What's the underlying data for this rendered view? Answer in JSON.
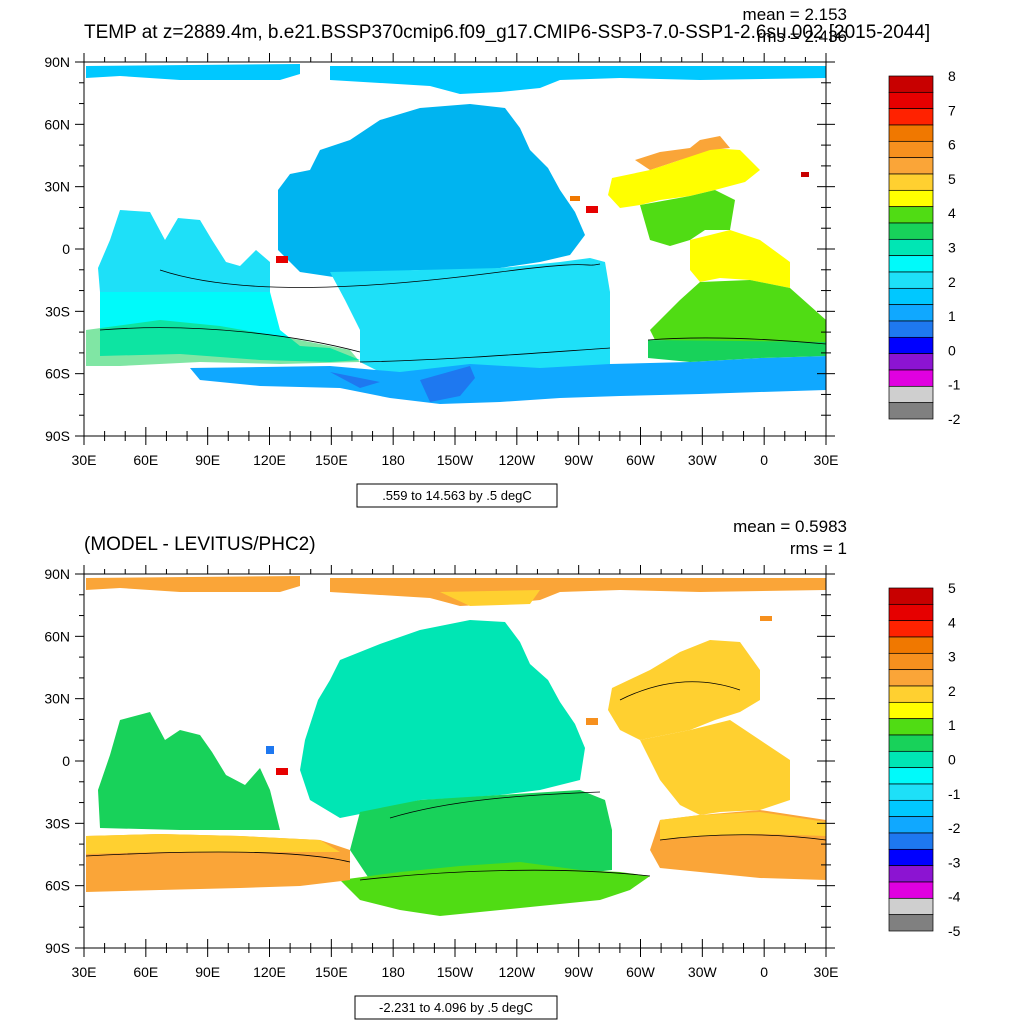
{
  "panels": [
    {
      "title": "TEMP at z=2889.4m, b.e21.BSSP370cmip6.f09_g17.CMIP6-SSP3-7.0-SSP1-2.6su.002 [2015-2044]",
      "mean_label": "mean = 2.153",
      "rms_label": "rms = 2.436",
      "contour_info": ".559 to 14.563 by .5 degC",
      "colorbar": {
        "labels": [
          "8",
          "7",
          "6",
          "5",
          "4",
          "3",
          "2",
          "1",
          "0",
          "-1",
          "-2"
        ],
        "colors": [
          "#c80000",
          "#e60000",
          "#ff2200",
          "#f07800",
          "#f6901e",
          "#faa538",
          "#ffd030",
          "#ffff00",
          "#50dc14",
          "#18d25a",
          "#00e6b4",
          "#00fafa",
          "#1ee0f8",
          "#00c8ff",
          "#10a8ff",
          "#1e78f0",
          "#0000ff",
          "#8c14d2",
          "#e000e0",
          "#cfcfcf",
          "#808080"
        ]
      }
    },
    {
      "title": "(MODEL - LEVITUS/PHC2)",
      "mean_label": "mean = 0.5983",
      "rms_label": "rms = 1",
      "contour_info": "-2.231 to 4.096 by .5 degC",
      "colorbar": {
        "labels": [
          "5",
          "4",
          "3",
          "2",
          "1",
          "0",
          "-1",
          "-2",
          "-3",
          "-4",
          "-5"
        ],
        "colors": [
          "#c80000",
          "#e60000",
          "#ff2200",
          "#f07800",
          "#f6901e",
          "#faa538",
          "#ffd030",
          "#ffff00",
          "#50dc14",
          "#18d25a",
          "#00e6b4",
          "#00fafa",
          "#1ee0f8",
          "#00c8ff",
          "#10a8ff",
          "#1e78f0",
          "#0000ff",
          "#8c14d2",
          "#e000e0",
          "#cfcfcf",
          "#808080"
        ]
      }
    }
  ],
  "chart_data": [
    {
      "type": "heatmap",
      "title": "TEMP at z=2889.4m, b.e21.BSSP370cmip6.f09_g17.CMIP6-SSP3-7.0-SSP1-2.6su.002 [2015-2044]",
      "x_ticks": [
        "30E",
        "60E",
        "90E",
        "120E",
        "150E",
        "180",
        "150W",
        "120W",
        "90W",
        "60W",
        "30W",
        "0",
        "30E"
      ],
      "y_ticks": [
        "90N",
        "60N",
        "30N",
        "0",
        "30S",
        "60S",
        "90S"
      ],
      "mean": 2.153,
      "rms": 2.436,
      "levels": [
        -2,
        -1,
        0,
        1,
        2,
        3,
        4,
        5,
        6,
        7,
        8
      ],
      "units": "degC"
    },
    {
      "type": "heatmap",
      "title": "(MODEL - LEVITUS/PHC2)",
      "x_ticks": [
        "30E",
        "60E",
        "90E",
        "120E",
        "150E",
        "180",
        "150W",
        "120W",
        "90W",
        "60W",
        "30W",
        "0",
        "30E"
      ],
      "y_ticks": [
        "90N",
        "60N",
        "30N",
        "0",
        "30S",
        "60S",
        "90S"
      ],
      "mean": 0.5983,
      "rms": 1,
      "levels": [
        -5,
        -4,
        -3,
        -2,
        -1,
        0,
        1,
        2,
        3,
        4,
        5
      ],
      "units": "degC"
    }
  ]
}
